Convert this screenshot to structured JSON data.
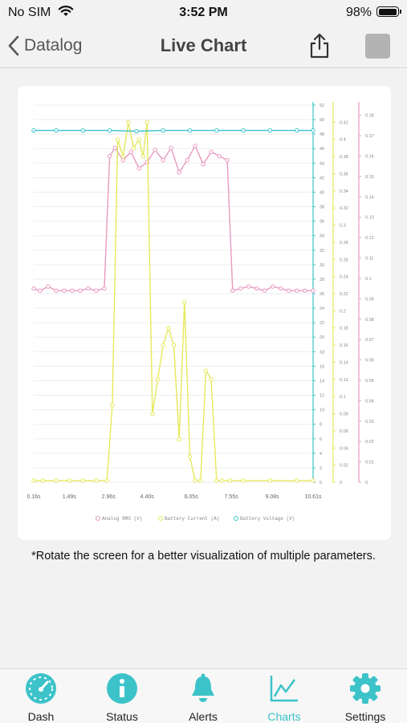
{
  "status_bar": {
    "carrier": "No SIM",
    "time": "3:52 PM",
    "battery": "98%"
  },
  "nav": {
    "back_label": "Datalog",
    "title": "Live Chart"
  },
  "note": "*Rotate the screen for a better visualization of multiple parameters.",
  "tabs": [
    {
      "label": "Dash",
      "icon": "gauge-icon"
    },
    {
      "label": "Status",
      "icon": "info-icon"
    },
    {
      "label": "Alerts",
      "icon": "bell-icon"
    },
    {
      "label": "Charts",
      "icon": "chart-icon",
      "active": true
    },
    {
      "label": "Settings",
      "icon": "gear-icon"
    }
  ],
  "colors": {
    "accent": "#3cc3c9",
    "analog": "#e89ac0",
    "current": "#e6e85a",
    "voltage": "#3cc3c9"
  },
  "chart_data": {
    "type": "line",
    "x_ticks": [
      "0.16s",
      "1.49s",
      "2.96s",
      "4.40s",
      "6.05s",
      "7.55s",
      "9.08s",
      "10.61s"
    ],
    "xlim": [
      0.16,
      10.61
    ],
    "grid": true,
    "legend_position": "bottom",
    "axes": [
      {
        "series": "Battery Voltage (V)",
        "ticks": [
          "0",
          "2",
          "4",
          "6",
          "8",
          "10",
          "12",
          "14",
          "16",
          "18",
          "20",
          "22",
          "24",
          "26",
          "28",
          "30",
          "32",
          "34",
          "36",
          "38",
          "40",
          "42",
          "44",
          "46",
          "48",
          "50",
          "52"
        ],
        "ylim": [
          0,
          52
        ]
      },
      {
        "series": "Battery Current (A)",
        "ticks": [
          "0",
          "0.02",
          "0.04",
          "0.06",
          "0.08",
          "0.1",
          "0.12",
          "0.14",
          "0.16",
          "0.18",
          "0.2",
          "0.22",
          "0.24",
          "0.26",
          "0.28",
          "0.3",
          "0.32",
          "0.34",
          "0.36",
          "0.38",
          "0.4",
          "0.42"
        ],
        "ylim": [
          0,
          0.44
        ]
      },
      {
        "series": "Analog RMS (V)",
        "ticks": [
          "0",
          "0.01",
          "0.02",
          "0.03",
          "0.04",
          "0.05",
          "0.06",
          "0.07",
          "0.08",
          "0.09",
          "0.1",
          "0.11",
          "0.12",
          "0.13",
          "0.14",
          "0.15",
          "0.16",
          "0.17",
          "0.18"
        ],
        "ylim": [
          0,
          0.185
        ]
      }
    ],
    "series": [
      {
        "name": "Analog RMS (V)",
        "x": [
          0.16,
          0.4,
          0.7,
          1.0,
          1.3,
          1.6,
          1.9,
          2.2,
          2.5,
          2.8,
          3.0,
          3.2,
          3.5,
          3.8,
          4.1,
          4.4,
          4.7,
          5.0,
          5.3,
          5.6,
          5.9,
          6.2,
          6.5,
          6.8,
          7.1,
          7.4,
          7.6,
          7.9,
          8.2,
          8.5,
          8.8,
          9.1,
          9.4,
          9.7,
          10.0,
          10.3,
          10.61
        ],
        "values": [
          0.095,
          0.094,
          0.096,
          0.094,
          0.094,
          0.094,
          0.094,
          0.095,
          0.094,
          0.095,
          0.16,
          0.164,
          0.158,
          0.162,
          0.154,
          0.157,
          0.163,
          0.158,
          0.164,
          0.152,
          0.158,
          0.165,
          0.156,
          0.162,
          0.16,
          0.158,
          0.094,
          0.095,
          0.096,
          0.095,
          0.094,
          0.096,
          0.095,
          0.094,
          0.094,
          0.094,
          0.094
        ]
      },
      {
        "name": "Battery Current (A)",
        "x": [
          0.16,
          0.5,
          1.0,
          1.5,
          2.0,
          2.5,
          2.9,
          3.1,
          3.3,
          3.5,
          3.7,
          3.9,
          4.1,
          4.25,
          4.4,
          4.6,
          4.8,
          5.0,
          5.2,
          5.4,
          5.6,
          5.8,
          6.0,
          6.2,
          6.4,
          6.6,
          6.8,
          7.0,
          7.2,
          7.5,
          8.0,
          9.0,
          10.0,
          10.61
        ],
        "values": [
          0.002,
          0.002,
          0.002,
          0.002,
          0.002,
          0.002,
          0.002,
          0.09,
          0.4,
          0.38,
          0.42,
          0.39,
          0.4,
          0.38,
          0.42,
          0.08,
          0.12,
          0.16,
          0.18,
          0.16,
          0.05,
          0.21,
          0.03,
          0.002,
          0.002,
          0.13,
          0.12,
          0.002,
          0.002,
          0.002,
          0.002,
          0.002,
          0.002,
          0.002
        ]
      },
      {
        "name": "Battery Voltage (V)",
        "x": [
          0.16,
          1.0,
          2.0,
          3.0,
          4.0,
          5.0,
          6.0,
          7.0,
          8.0,
          9.0,
          10.0,
          10.61
        ],
        "values": [
          48.5,
          48.5,
          48.5,
          48.5,
          48.4,
          48.5,
          48.5,
          48.5,
          48.5,
          48.5,
          48.5,
          48.5
        ]
      }
    ]
  }
}
